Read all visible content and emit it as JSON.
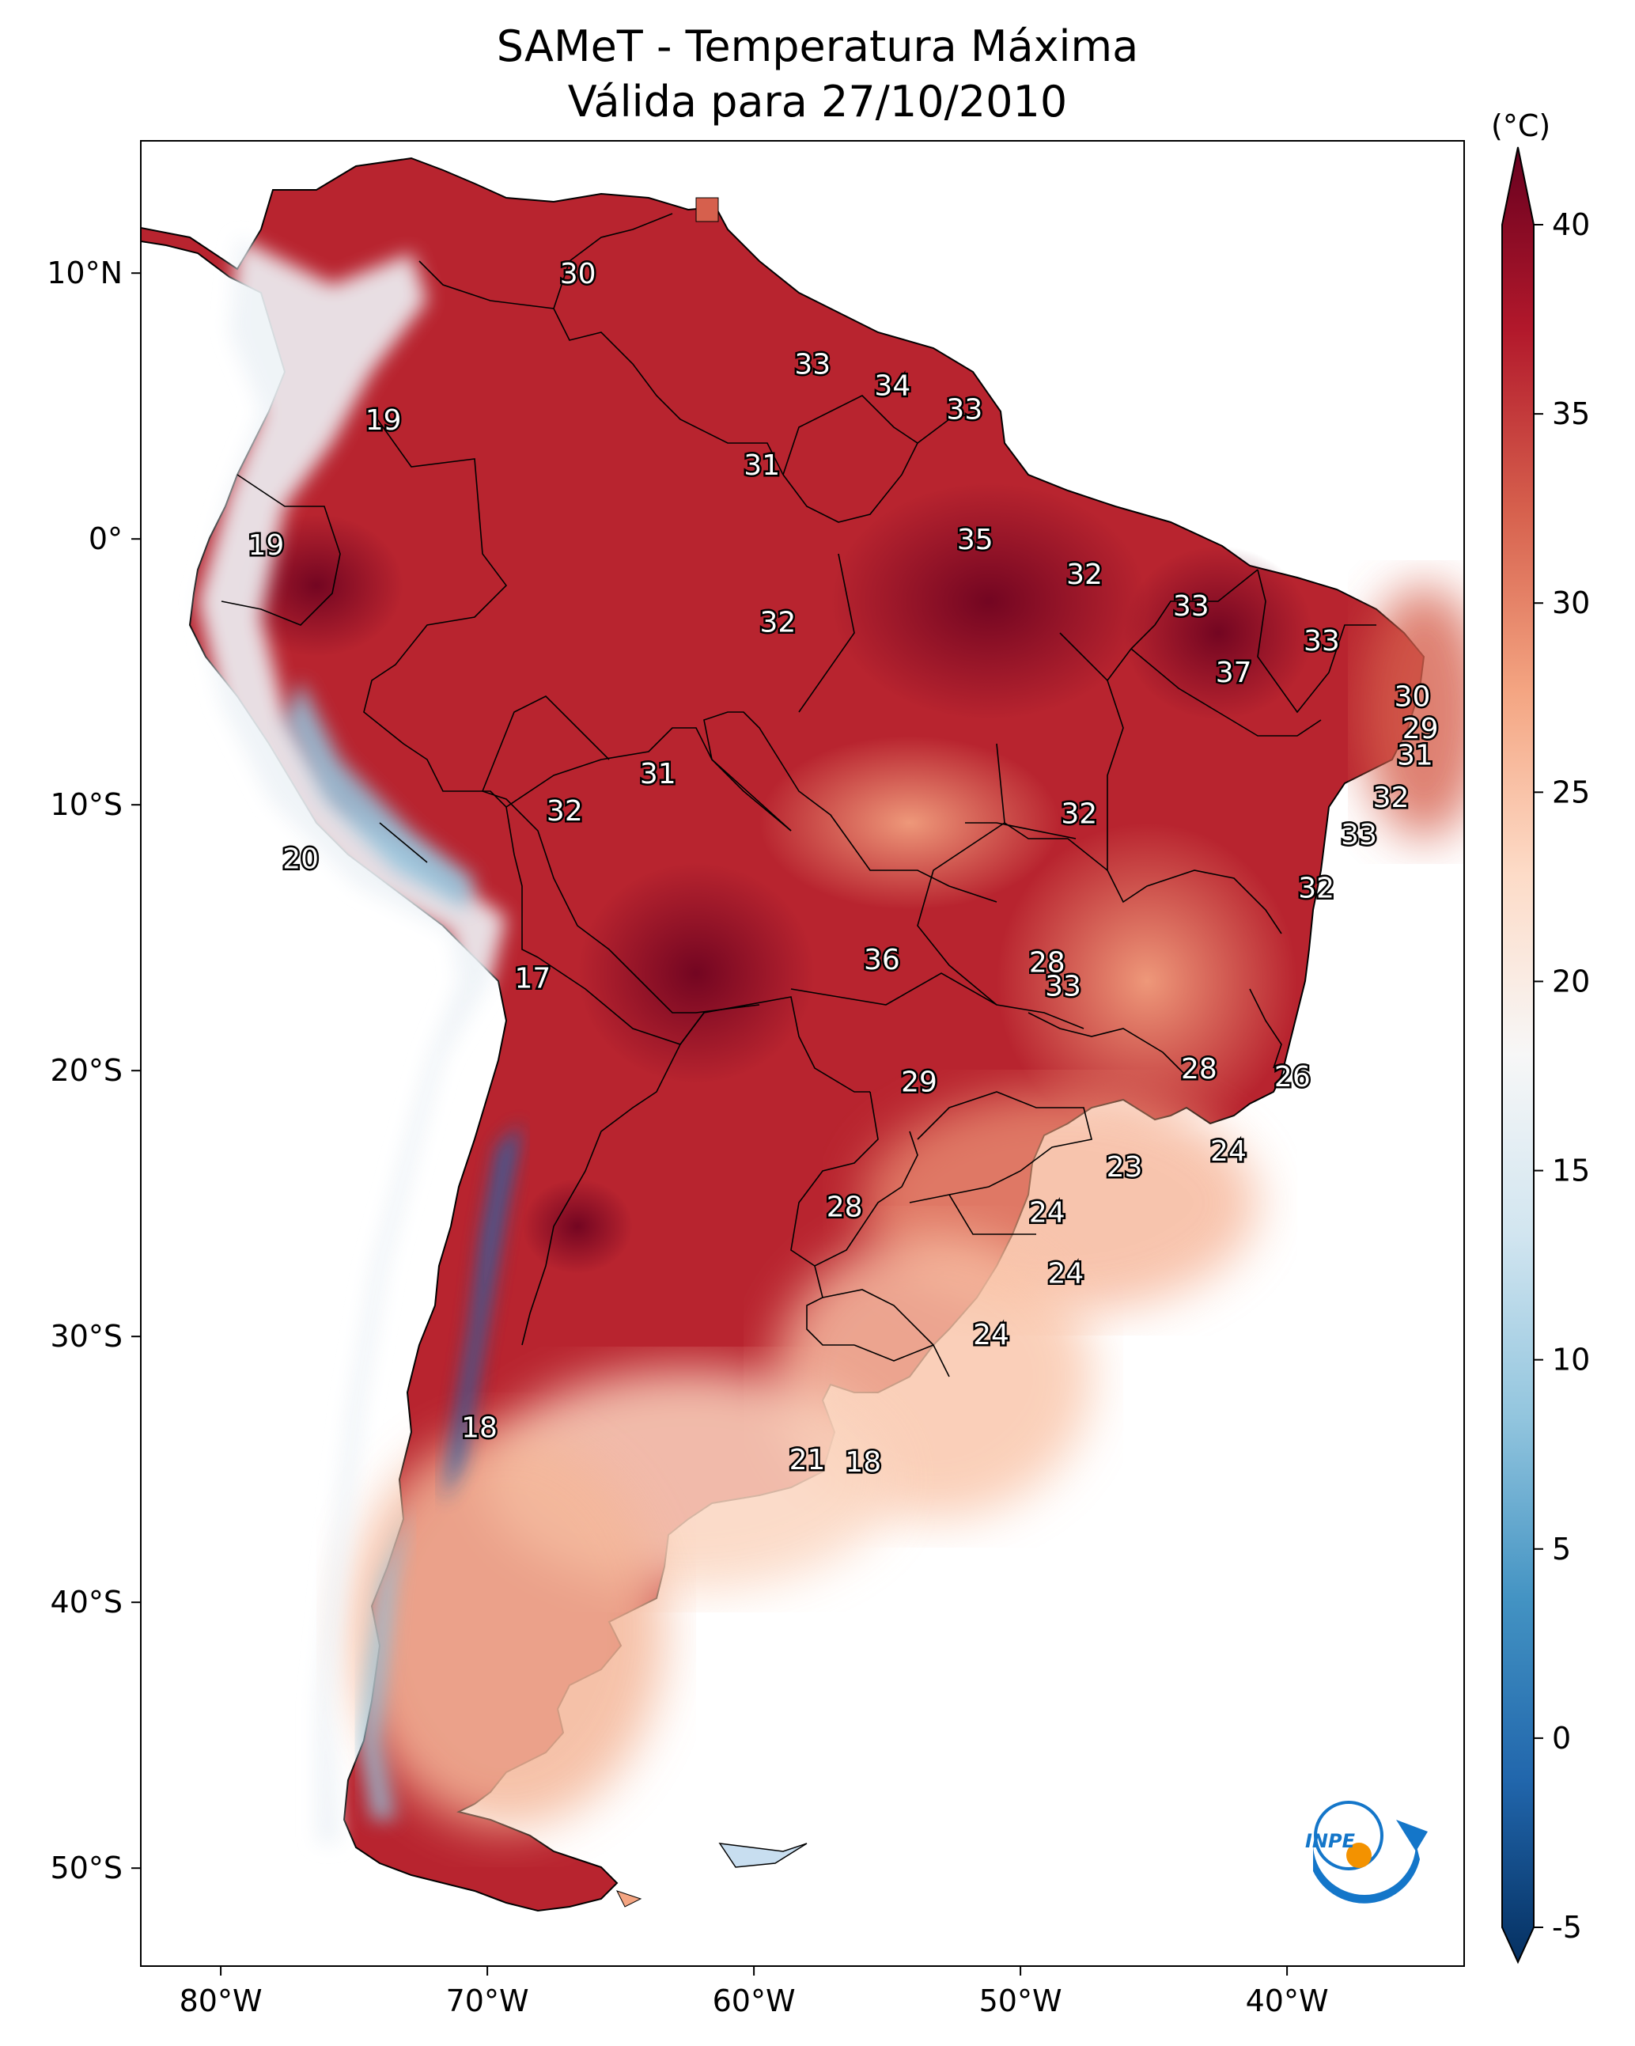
{
  "title": "SAMeT - Temperatura Máxima",
  "subtitle": "Válida para 27/10/2010",
  "colorbar": {
    "unit": "(°C)",
    "ticks": [
      "40",
      "35",
      "30",
      "25",
      "20",
      "15",
      "10",
      "5",
      "0",
      "-5"
    ],
    "range": [
      -5,
      40
    ],
    "colors": [
      "#053061",
      "#2166ac",
      "#4393c3",
      "#92c5de",
      "#d1e5f0",
      "#f7f7f7",
      "#fddbc7",
      "#f4a582",
      "#d6604d",
      "#b2182b",
      "#67001f"
    ]
  },
  "axes": {
    "lat_labels": [
      "10°N",
      "0°",
      "10°S",
      "20°S",
      "30°S",
      "40°S",
      "50°S"
    ],
    "lon_labels": [
      "80°W",
      "70°W",
      "60°W",
      "50°W",
      "40°W"
    ]
  },
  "contour_labels": [
    {
      "text": "30",
      "lat": 10.0,
      "lon": -66.6
    },
    {
      "text": "33",
      "lat": 6.6,
      "lon": -57.8
    },
    {
      "text": "34",
      "lat": 5.8,
      "lon": -54.8
    },
    {
      "text": "33",
      "lat": 4.9,
      "lon": -52.1
    },
    {
      "text": "19",
      "lat": 4.5,
      "lon": -73.9
    },
    {
      "text": "31",
      "lat": 2.8,
      "lon": -59.7
    },
    {
      "text": "35",
      "lat": 0.0,
      "lon": -51.7
    },
    {
      "text": "19",
      "lat": -0.2,
      "lon": -78.3
    },
    {
      "text": "32",
      "lat": -1.3,
      "lon": -47.6
    },
    {
      "text": "33",
      "lat": -2.5,
      "lon": -43.6
    },
    {
      "text": "32",
      "lat": -3.1,
      "lon": -59.1
    },
    {
      "text": "33",
      "lat": -3.8,
      "lon": -38.7
    },
    {
      "text": "37",
      "lat": -5.0,
      "lon": -42.0
    },
    {
      "text": "30",
      "lat": -5.9,
      "lon": -35.3
    },
    {
      "text": "29",
      "lat": -7.1,
      "lon": -35.0
    },
    {
      "text": "31",
      "lat": -8.1,
      "lon": -35.2
    },
    {
      "text": "31",
      "lat": -8.8,
      "lon": -63.6
    },
    {
      "text": "32",
      "lat": -9.7,
      "lon": -36.1
    },
    {
      "text": "32",
      "lat": -10.2,
      "lon": -67.1
    },
    {
      "text": "32",
      "lat": -10.3,
      "lon": -47.8
    },
    {
      "text": "33",
      "lat": -11.1,
      "lon": -37.3
    },
    {
      "text": "20",
      "lat": -12.0,
      "lon": -77.0
    },
    {
      "text": "32",
      "lat": -13.1,
      "lon": -38.9
    },
    {
      "text": "36",
      "lat": -15.8,
      "lon": -55.2
    },
    {
      "text": "28",
      "lat": -15.9,
      "lon": -49.0
    },
    {
      "text": "17",
      "lat": -16.5,
      "lon": -68.3
    },
    {
      "text": "33",
      "lat": -16.8,
      "lon": -48.4
    },
    {
      "text": "28",
      "lat": -19.9,
      "lon": -43.3
    },
    {
      "text": "26",
      "lat": -20.2,
      "lon": -39.8
    },
    {
      "text": "29",
      "lat": -20.4,
      "lon": -53.8
    },
    {
      "text": "24",
      "lat": -23.0,
      "lon": -42.2
    },
    {
      "text": "23",
      "lat": -23.6,
      "lon": -46.1
    },
    {
      "text": "28",
      "lat": -25.1,
      "lon": -56.6
    },
    {
      "text": "24",
      "lat": -25.3,
      "lon": -49.0
    },
    {
      "text": "24",
      "lat": -27.6,
      "lon": -48.3
    },
    {
      "text": "24",
      "lat": -29.9,
      "lon": -51.1
    },
    {
      "text": "18",
      "lat": -33.4,
      "lon": -70.3
    },
    {
      "text": "21",
      "lat": -34.6,
      "lon": -58.0
    },
    {
      "text": "18",
      "lat": -34.7,
      "lon": -55.9
    }
  ],
  "logo_text": "INPE"
}
